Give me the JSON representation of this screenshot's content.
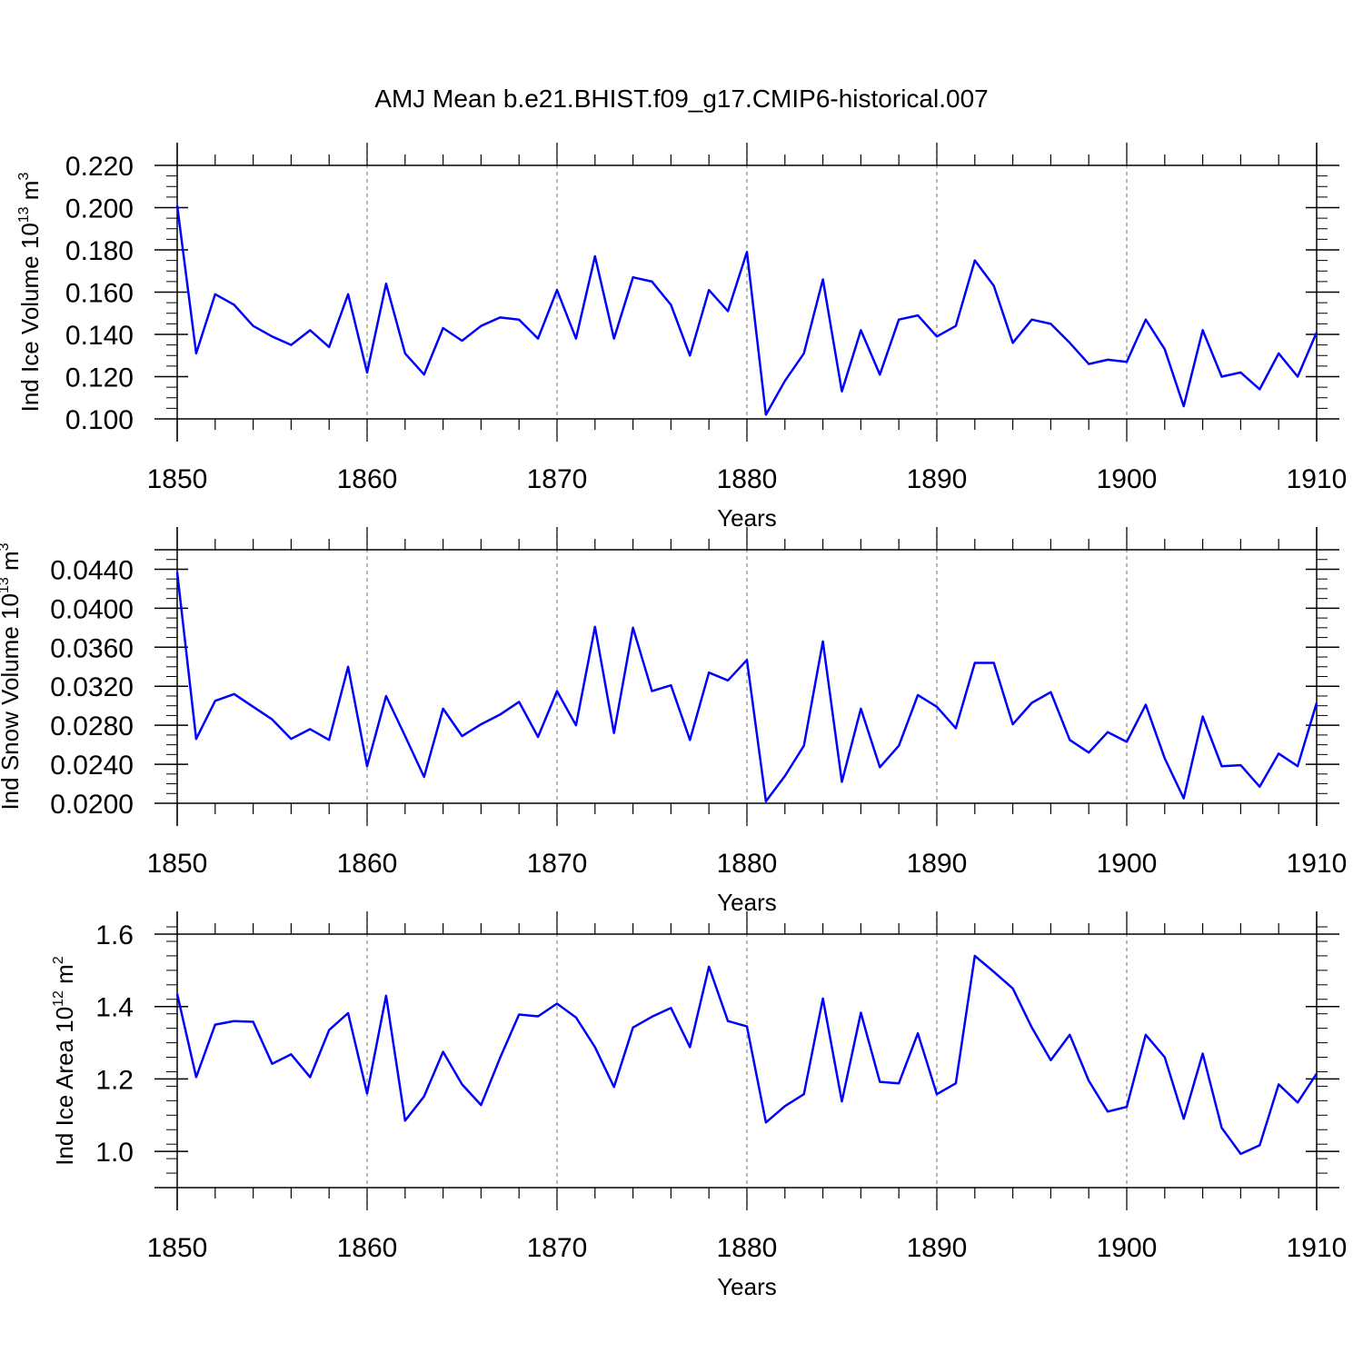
{
  "title": "AMJ Mean b.e21.BHIST.f09_g17.CMIP6-historical.007",
  "colors": {
    "line": "#0000ff",
    "axis": "#000000",
    "grid": "#888888"
  },
  "chart_data": [
    {
      "type": "line",
      "xlabel": "Years",
      "ylabel": {
        "text": "Ind Ice Volume 10",
        "exp": "13",
        "unit": " m",
        "unit_exp": "3"
      },
      "xlim": [
        1850,
        1910
      ],
      "ylim": [
        0.1,
        0.22
      ],
      "x_ticks": [
        1850,
        1860,
        1870,
        1880,
        1890,
        1900,
        1910
      ],
      "x_tick_labels": [
        "1850",
        "1860",
        "1870",
        "1880",
        "1890",
        "1900",
        "1910"
      ],
      "y_ticks": [
        0.1,
        0.12,
        0.14,
        0.16,
        0.18,
        0.2,
        0.22
      ],
      "y_tick_labels": [
        "0.100",
        "0.120",
        "0.140",
        "0.160",
        "0.180",
        "0.200",
        "0.220"
      ],
      "y_minor_step": 0.005,
      "grid": "vertical dashed at major x ticks",
      "series": [
        {
          "name": "Ind Ice Volume",
          "x_start": 1850,
          "values": [
            0.201,
            0.131,
            0.159,
            0.154,
            0.144,
            0.139,
            0.135,
            0.142,
            0.134,
            0.159,
            0.122,
            0.164,
            0.131,
            0.121,
            0.143,
            0.137,
            0.144,
            0.148,
            0.147,
            0.138,
            0.161,
            0.138,
            0.177,
            0.138,
            0.167,
            0.165,
            0.154,
            0.13,
            0.161,
            0.151,
            0.179,
            0.102,
            0.118,
            0.131,
            0.166,
            0.113,
            0.142,
            0.121,
            0.147,
            0.149,
            0.139,
            0.144,
            0.175,
            0.163,
            0.136,
            0.147,
            0.145,
            0.136,
            0.126,
            0.128,
            0.127,
            0.147,
            0.133,
            0.106,
            0.142,
            0.12,
            0.122,
            0.114,
            0.131,
            0.12,
            0.141
          ]
        }
      ]
    },
    {
      "type": "line",
      "xlabel": "Years",
      "ylabel": {
        "text": "Ind Snow Volume 10",
        "exp": "13",
        "unit": " m",
        "unit_exp": "3"
      },
      "xlim": [
        1850,
        1910
      ],
      "ylim": [
        0.02,
        0.046
      ],
      "x_ticks": [
        1850,
        1860,
        1870,
        1880,
        1890,
        1900,
        1910
      ],
      "x_tick_labels": [
        "1850",
        "1860",
        "1870",
        "1880",
        "1890",
        "1900",
        "1910"
      ],
      "y_ticks": [
        0.02,
        0.024,
        0.028,
        0.032,
        0.036,
        0.04,
        0.044
      ],
      "y_tick_labels": [
        "0.0200",
        "0.0240",
        "0.0280",
        "0.0320",
        "0.0360",
        "0.0400",
        "0.0440"
      ],
      "y_minor_step": 0.001,
      "grid": "vertical dashed at major x ticks",
      "series": [
        {
          "name": "Ind Snow Volume",
          "x_start": 1850,
          "values": [
            0.0437,
            0.0266,
            0.0305,
            0.0312,
            0.0299,
            0.0286,
            0.0266,
            0.0276,
            0.0265,
            0.034,
            0.0238,
            0.031,
            0.0269,
            0.0227,
            0.0297,
            0.0269,
            0.0281,
            0.0291,
            0.0304,
            0.0268,
            0.0315,
            0.028,
            0.0381,
            0.0272,
            0.038,
            0.0315,
            0.0321,
            0.0265,
            0.0334,
            0.0326,
            0.0347,
            0.0202,
            0.0228,
            0.0259,
            0.0366,
            0.0222,
            0.0297,
            0.0237,
            0.0259,
            0.0311,
            0.0299,
            0.0277,
            0.0344,
            0.0344,
            0.0281,
            0.0303,
            0.0314,
            0.0265,
            0.0252,
            0.0273,
            0.0263,
            0.0301,
            0.0246,
            0.0205,
            0.0289,
            0.0238,
            0.0239,
            0.0217,
            0.0251,
            0.0238,
            0.0303
          ]
        }
      ]
    },
    {
      "type": "line",
      "xlabel": "Years",
      "ylabel": {
        "text": "Ind Ice Area 10",
        "exp": "12",
        "unit": " m",
        "unit_exp": "2"
      },
      "xlim": [
        1850,
        1910
      ],
      "ylim": [
        0.9,
        1.6
      ],
      "x_ticks": [
        1850,
        1860,
        1870,
        1880,
        1890,
        1900,
        1910
      ],
      "x_tick_labels": [
        "1850",
        "1860",
        "1870",
        "1880",
        "1890",
        "1900",
        "1910"
      ],
      "y_ticks": [
        1.0,
        1.2,
        1.4,
        1.6
      ],
      "y_tick_labels": [
        "1.0",
        "1.2",
        "1.4",
        "1.6"
      ],
      "y_minor_step": 0.04,
      "grid": "vertical dashed at major x ticks",
      "series": [
        {
          "name": "Ind Ice Area",
          "x_start": 1850,
          "values": [
            1.435,
            1.205,
            1.35,
            1.36,
            1.358,
            1.242,
            1.268,
            1.205,
            1.335,
            1.382,
            1.16,
            1.43,
            1.085,
            1.152,
            1.275,
            1.185,
            1.128,
            1.258,
            1.378,
            1.373,
            1.408,
            1.37,
            1.288,
            1.178,
            1.342,
            1.372,
            1.396,
            1.288,
            1.51,
            1.36,
            1.345,
            1.08,
            1.125,
            1.158,
            1.422,
            1.138,
            1.383,
            1.192,
            1.188,
            1.326,
            1.158,
            1.188,
            1.54,
            1.496,
            1.45,
            1.342,
            1.252,
            1.322,
            1.195,
            1.11,
            1.123,
            1.322,
            1.26,
            1.09,
            1.27,
            1.065,
            0.993,
            1.017,
            1.185,
            1.135,
            1.215
          ]
        }
      ]
    }
  ]
}
